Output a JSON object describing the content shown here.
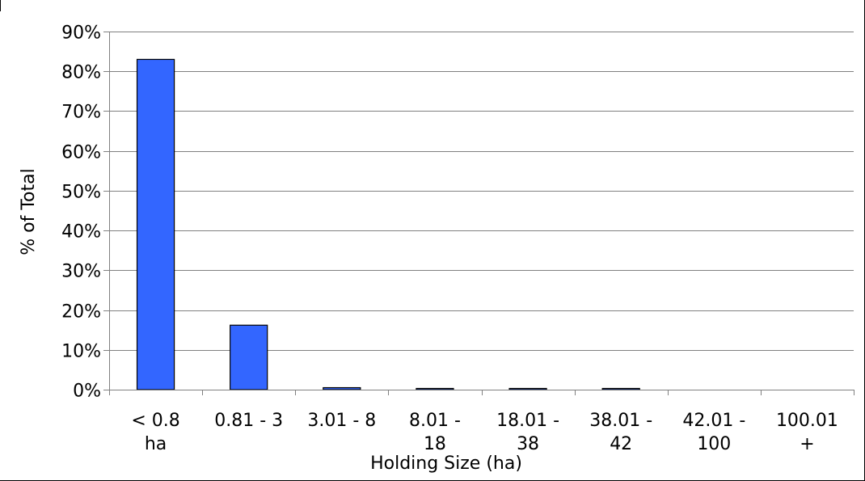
{
  "chart_data": {
    "type": "bar",
    "title": "",
    "xlabel": "Holding Size (ha)",
    "ylabel": "% of Total",
    "categories": [
      [
        "< 0.8",
        "ha"
      ],
      [
        "0.81 - 3"
      ],
      [
        "3.01 - 8"
      ],
      [
        "8.01 -",
        "18"
      ],
      [
        "18.01 -",
        "38"
      ],
      [
        "38.01 -",
        "42"
      ],
      [
        "42.01 -",
        "100"
      ],
      [
        "100.01",
        "+"
      ]
    ],
    "values": [
      83.0,
      16.2,
      0.5,
      0.3,
      0.25,
      0.15,
      0.0,
      0.0
    ],
    "ylim": [
      0,
      90
    ],
    "yticks": [
      "0%",
      "10%",
      "20%",
      "30%",
      "40%",
      "50%",
      "60%",
      "70%",
      "80%",
      "90%"
    ],
    "grid": true,
    "legend": "none",
    "colors": {
      "bar_fill": "#3366ff",
      "bar_stroke": "#000000",
      "grid": "#808080",
      "axis": "#808080"
    }
  }
}
